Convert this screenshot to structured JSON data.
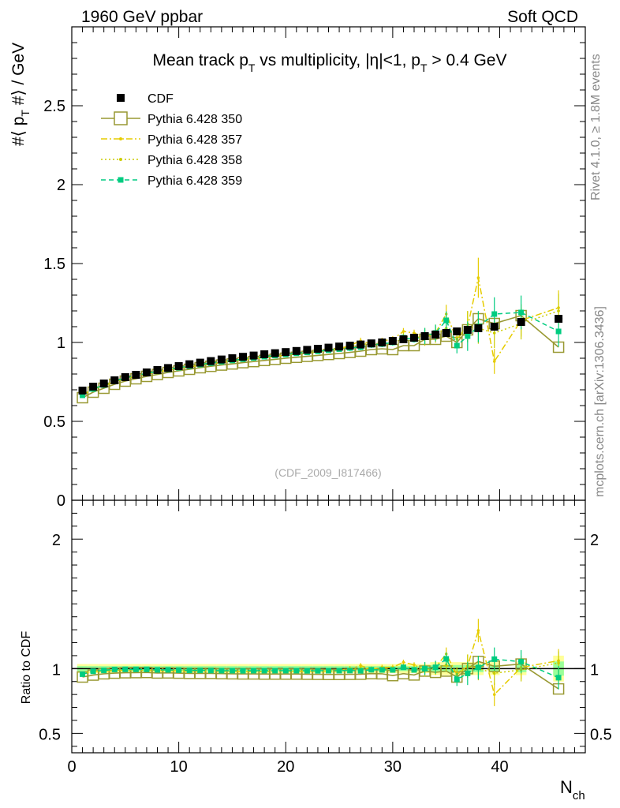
{
  "header": {
    "left": "1960 GeV ppbar",
    "right": "Soft QCD"
  },
  "side_labels": {
    "rivet": "Rivet 4.1.0, ≥ 1.8M events",
    "mcplots": "mcplots.cern.ch [arXiv:1306.3436]"
  },
  "colors": {
    "cdf": "#000000",
    "p350": "#999933",
    "p357": "#e6cc00",
    "p358": "#cccc00",
    "p359": "#00cc80",
    "band_yellow": "#ffff99",
    "band_green": "#99ff99"
  },
  "chart_data": [
    {
      "type": "scatter",
      "panel": "main",
      "title": "Mean track pT vs multiplicity, |η|<1, pT > 0.4 GeV",
      "title_parts": {
        "a": "Mean track p",
        "sub1": "T",
        "b": " vs multiplicity, |η|<1, p",
        "sub2": "T",
        "c": " > 0.4 GeV"
      },
      "ylabel": "#⟨ pT #⟩ / GeV",
      "ylabel_parts": {
        "a": "#⟨ p",
        "sub": "T",
        "b": " #⟩ / GeV"
      },
      "xlabel": "Nch",
      "xlabel_parts": {
        "a": "N",
        "sub": "ch"
      },
      "watermark": "(CDF_2009_I817466)",
      "xlim": [
        0,
        48
      ],
      "ylim": [
        0,
        3
      ],
      "yticks": [
        0,
        0.5,
        1,
        1.5,
        2,
        2.5
      ],
      "ytick_labels": [
        "0",
        "0.5",
        "1",
        "1.5",
        "2",
        "2.5"
      ],
      "xticks": [
        0,
        10,
        20,
        30,
        40
      ],
      "xtick_labels": [
        "0",
        "10",
        "20",
        "30",
        "40"
      ],
      "legend": [
        "CDF",
        "Pythia 6.428 350",
        "Pythia 6.428 357",
        "Pythia 6.428 358",
        "Pythia 6.428 359"
      ],
      "legend_position": "top-left",
      "series": [
        {
          "name": "CDF",
          "style": "data",
          "x": [
            1,
            2,
            3,
            4,
            5,
            6,
            7,
            8,
            9,
            10,
            11,
            12,
            13,
            14,
            15,
            16,
            17,
            18,
            19,
            20,
            21,
            22,
            23,
            24,
            25,
            26,
            27,
            28,
            29,
            30,
            31,
            32,
            33,
            34,
            35,
            36,
            37,
            38,
            39.5,
            42,
            45.5
          ],
          "y": [
            0.695,
            0.72,
            0.74,
            0.76,
            0.78,
            0.795,
            0.81,
            0.825,
            0.838,
            0.85,
            0.862,
            0.872,
            0.882,
            0.892,
            0.9,
            0.909,
            0.917,
            0.925,
            0.932,
            0.939,
            0.946,
            0.953,
            0.96,
            0.967,
            0.974,
            0.98,
            0.987,
            0.994,
            1.0,
            1.01,
            1.02,
            1.03,
            1.04,
            1.05,
            1.06,
            1.07,
            1.08,
            1.09,
            1.1,
            1.13,
            1.15
          ]
        },
        {
          "name": "Pythia 6.428 350",
          "x": [
            1,
            2,
            3,
            4,
            5,
            6,
            7,
            8,
            9,
            10,
            11,
            12,
            13,
            14,
            15,
            16,
            17,
            18,
            19,
            20,
            21,
            22,
            23,
            24,
            25,
            26,
            27,
            28,
            29,
            30,
            31,
            32,
            33,
            34,
            35,
            36,
            37,
            38,
            39.5,
            42,
            45.5
          ],
          "y": [
            0.65,
            0.685,
            0.71,
            0.735,
            0.755,
            0.77,
            0.785,
            0.797,
            0.81,
            0.82,
            0.83,
            0.84,
            0.849,
            0.857,
            0.864,
            0.872,
            0.879,
            0.886,
            0.893,
            0.9,
            0.906,
            0.912,
            0.918,
            0.924,
            0.93,
            0.937,
            0.945,
            0.955,
            0.96,
            0.955,
            0.98,
            0.98,
            1.02,
            1.02,
            1.04,
            1.0,
            1.08,
            1.15,
            1.12,
            1.17,
            0.97
          ]
        },
        {
          "name": "Pythia 6.428 357",
          "x": [
            1,
            2,
            3,
            4,
            5,
            6,
            7,
            8,
            9,
            10,
            11,
            12,
            13,
            14,
            15,
            16,
            17,
            18,
            19,
            20,
            21,
            22,
            23,
            24,
            25,
            26,
            27,
            28,
            29,
            30,
            31,
            32,
            33,
            34,
            35,
            36,
            37,
            38,
            39.5,
            42,
            45.5
          ],
          "y": [
            0.665,
            0.705,
            0.725,
            0.75,
            0.77,
            0.785,
            0.8,
            0.812,
            0.825,
            0.835,
            0.845,
            0.855,
            0.864,
            0.873,
            0.881,
            0.889,
            0.897,
            0.905,
            0.912,
            0.919,
            0.927,
            0.934,
            0.94,
            0.95,
            0.96,
            0.98,
            1.01,
            0.99,
            1.01,
            1.02,
            1.07,
            1.06,
            1.03,
            1.06,
            1.18,
            1.02,
            1.1,
            1.41,
            0.88,
            1.14,
            1.22
          ]
        },
        {
          "name": "Pythia 6.428 358",
          "x": [
            1,
            2,
            3,
            4,
            5,
            6,
            7,
            8,
            9,
            10,
            11,
            12,
            13,
            14,
            15,
            16,
            17,
            18,
            19,
            20,
            21,
            22,
            23,
            24,
            25,
            26,
            27,
            28,
            29,
            30,
            31,
            32,
            33,
            34,
            35,
            36,
            37,
            38,
            39.5,
            42,
            45.5
          ],
          "y": [
            0.67,
            0.705,
            0.725,
            0.75,
            0.77,
            0.786,
            0.8,
            0.813,
            0.825,
            0.836,
            0.846,
            0.856,
            0.865,
            0.874,
            0.882,
            0.89,
            0.898,
            0.905,
            0.913,
            0.92,
            0.927,
            0.934,
            0.941,
            0.948,
            0.955,
            0.97,
            0.99,
            0.99,
            0.99,
            1.0,
            1.04,
            1.03,
            1.04,
            1.05,
            1.09,
            1.03,
            1.1,
            1.09,
            1.06,
            1.12,
            1.2
          ]
        },
        {
          "name": "Pythia 6.428 359",
          "x": [
            1,
            2,
            3,
            4,
            5,
            6,
            7,
            8,
            9,
            10,
            11,
            12,
            13,
            14,
            15,
            16,
            17,
            18,
            19,
            20,
            21,
            22,
            23,
            24,
            25,
            26,
            27,
            28,
            29,
            30,
            31,
            32,
            33,
            34,
            35,
            36,
            37,
            38,
            39.5,
            42,
            45.5
          ],
          "y": [
            0.665,
            0.705,
            0.73,
            0.755,
            0.775,
            0.79,
            0.805,
            0.817,
            0.829,
            0.84,
            0.85,
            0.86,
            0.869,
            0.878,
            0.886,
            0.894,
            0.902,
            0.91,
            0.917,
            0.924,
            0.931,
            0.937,
            0.944,
            0.951,
            0.958,
            0.965,
            0.97,
            0.985,
            0.99,
            1.0,
            1.03,
            1.02,
            1.04,
            1.06,
            1.14,
            0.98,
            1.04,
            1.1,
            1.18,
            1.19,
            1.07
          ]
        }
      ]
    },
    {
      "type": "scatter",
      "panel": "ratio",
      "ylabel": "Ratio to CDF",
      "ylim": [
        0.35,
        2.3
      ],
      "yticks": [
        0.5,
        1,
        2
      ],
      "ytick_labels": [
        "0.5",
        "1",
        "2"
      ],
      "reference_line": 1,
      "series": [
        {
          "name": "Pythia 6.428 350",
          "y": [
            0.935,
            0.95,
            0.96,
            0.965,
            0.968,
            0.969,
            0.97,
            0.966,
            0.967,
            0.965,
            0.963,
            0.963,
            0.963,
            0.961,
            0.96,
            0.959,
            0.959,
            0.958,
            0.958,
            0.958,
            0.958,
            0.957,
            0.956,
            0.955,
            0.955,
            0.956,
            0.957,
            0.961,
            0.96,
            0.946,
            0.961,
            0.951,
            0.981,
            0.971,
            0.981,
            0.935,
            1.0,
            1.055,
            1.018,
            1.035,
            0.843
          ]
        },
        {
          "name": "Pythia 6.428 357",
          "y": [
            0.957,
            0.979,
            0.98,
            0.987,
            0.987,
            0.987,
            0.988,
            0.984,
            0.985,
            0.982,
            0.98,
            0.98,
            0.98,
            0.979,
            0.979,
            0.978,
            0.978,
            0.978,
            0.979,
            0.979,
            0.98,
            0.98,
            0.979,
            0.982,
            0.986,
            1.0,
            1.023,
            0.996,
            1.01,
            1.01,
            1.049,
            1.029,
            0.99,
            1.01,
            1.113,
            0.953,
            1.019,
            1.294,
            0.8,
            1.009,
            1.061
          ]
        },
        {
          "name": "Pythia 6.428 358",
          "y": [
            0.964,
            0.979,
            0.98,
            0.987,
            0.987,
            0.989,
            0.988,
            0.985,
            0.985,
            0.984,
            0.981,
            0.982,
            0.981,
            0.98,
            0.98,
            0.979,
            0.979,
            0.978,
            0.98,
            0.98,
            0.98,
            0.98,
            0.98,
            0.98,
            0.981,
            0.99,
            1.003,
            0.996,
            0.99,
            0.99,
            1.02,
            1.0,
            1.0,
            1.0,
            1.028,
            0.963,
            1.019,
            1.0,
            0.964,
            0.991,
            1.043
          ]
        },
        {
          "name": "Pythia 6.428 359",
          "y": [
            0.957,
            0.979,
            0.986,
            0.993,
            0.994,
            0.994,
            0.994,
            0.99,
            0.99,
            0.988,
            0.986,
            0.986,
            0.985,
            0.984,
            0.984,
            0.983,
            0.984,
            0.984,
            0.984,
            0.984,
            0.984,
            0.983,
            0.983,
            0.984,
            0.984,
            0.985,
            0.983,
            0.991,
            0.99,
            0.99,
            1.01,
            0.99,
            1.0,
            1.01,
            1.075,
            0.916,
            0.963,
            1.009,
            1.073,
            1.053,
            0.93
          ]
        }
      ]
    }
  ]
}
